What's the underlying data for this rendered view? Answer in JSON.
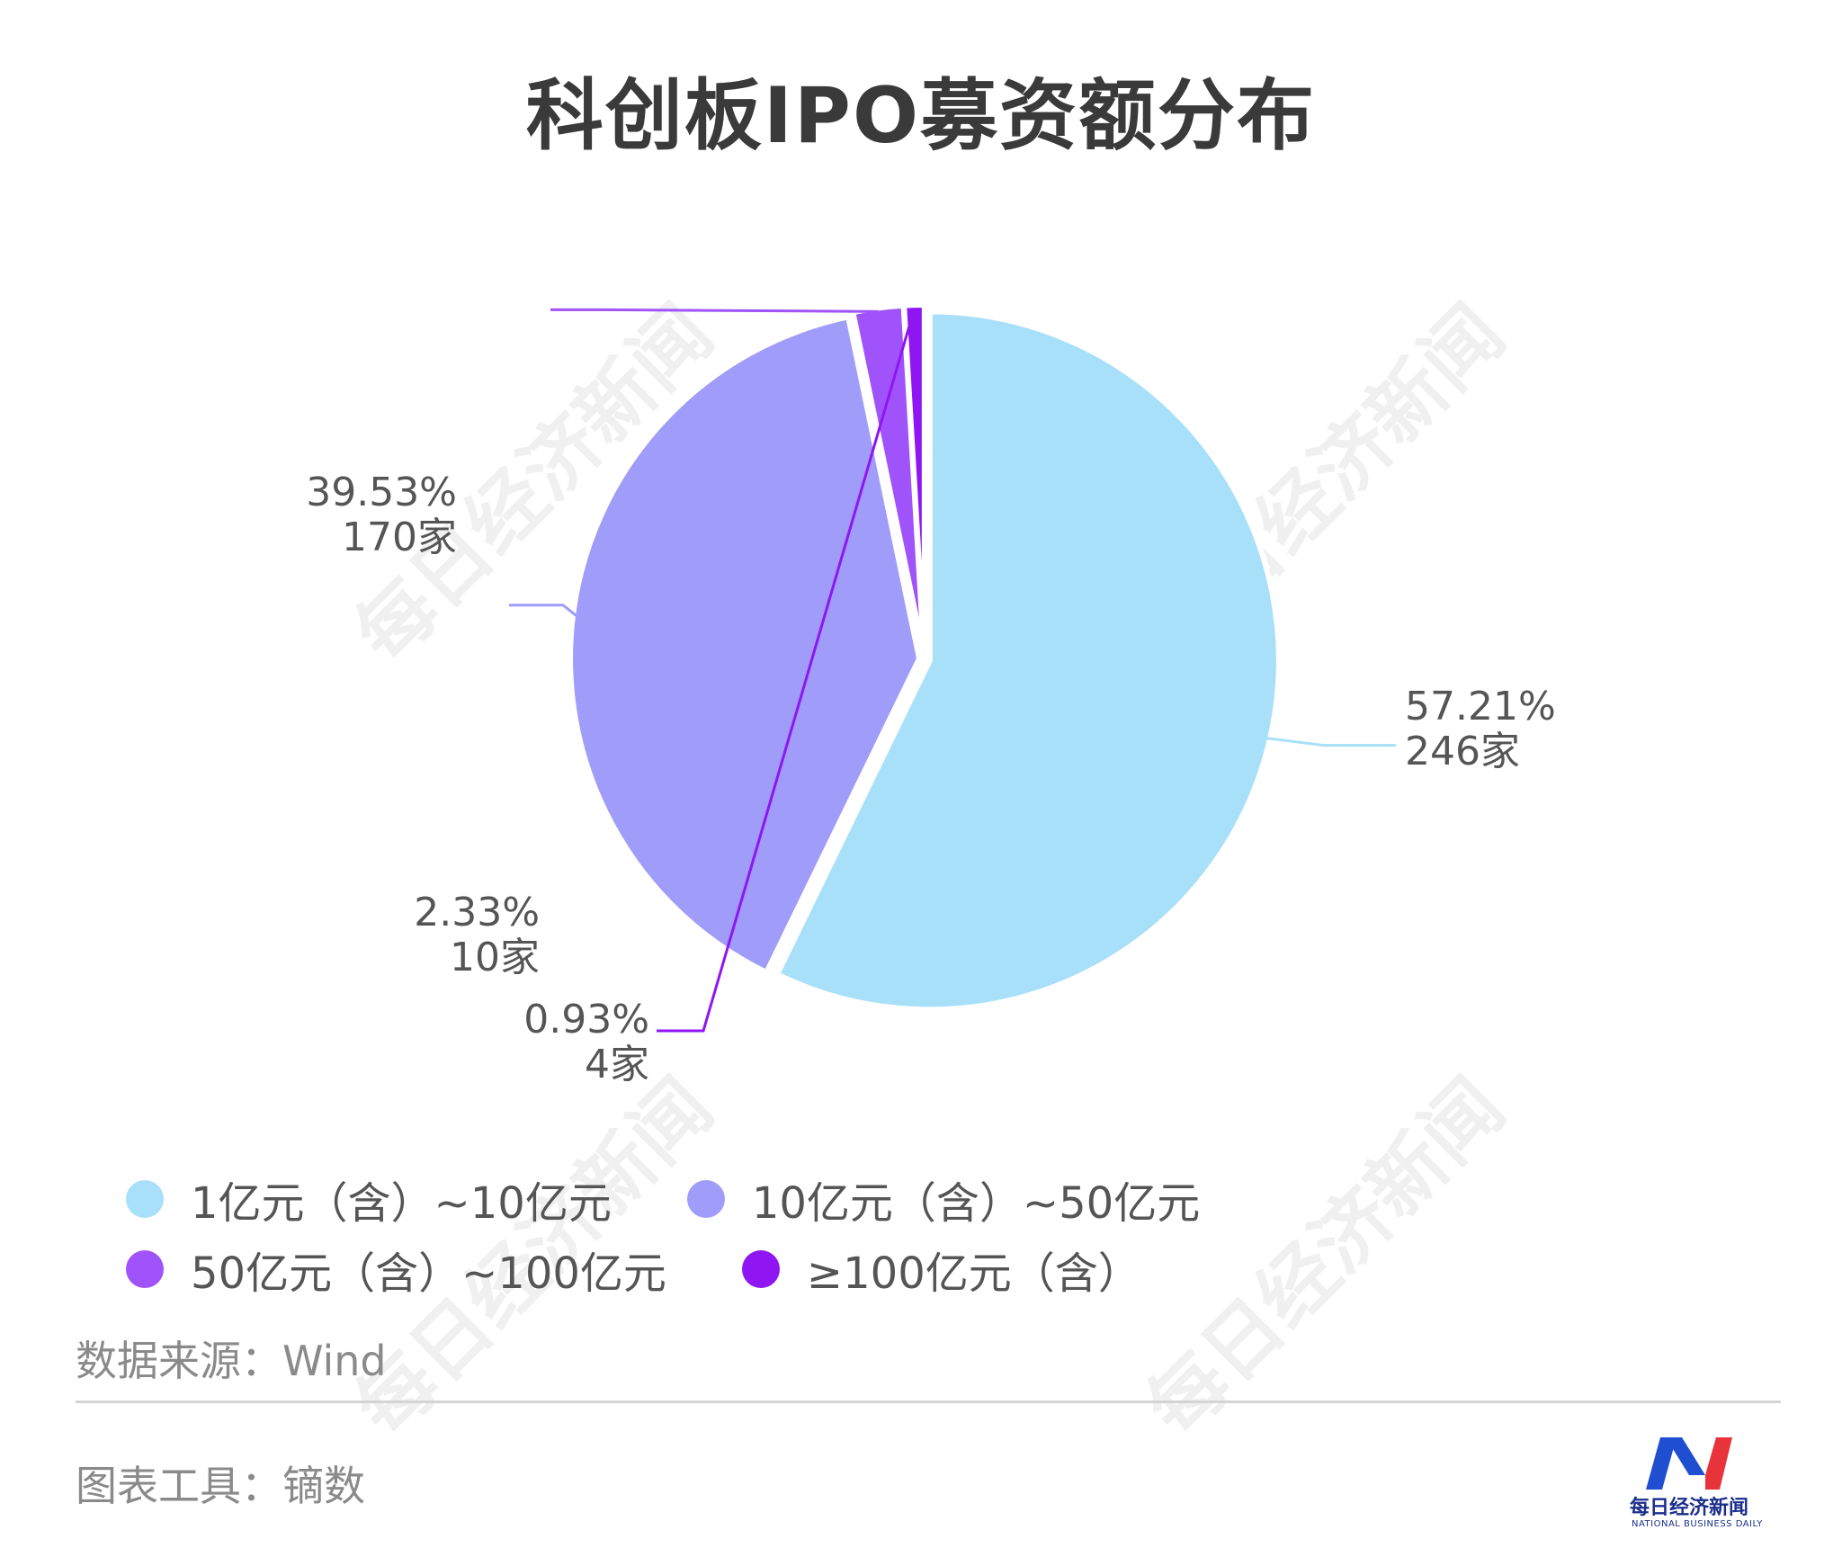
{
  "title": "科创板IPO募资额分布",
  "chart_data": {
    "type": "pie",
    "title": "科创板IPO募资额分布",
    "slices": [
      {
        "category": "1亿元（含）~10亿元",
        "percent": 57.21,
        "percent_label": "57.21%",
        "count": 246,
        "count_label": "246家",
        "color": "#a8e0fa"
      },
      {
        "category": "10亿元（含）~50亿元",
        "percent": 39.53,
        "percent_label": "39.53%",
        "count": 170,
        "count_label": "170家",
        "color": "#a09cf9"
      },
      {
        "category": "50亿元（含）~100亿元",
        "percent": 2.33,
        "percent_label": "2.33%",
        "count": 10,
        "count_label": "10家",
        "color": "#a052fb"
      },
      {
        "category": "≥100亿元（含）",
        "percent": 0.93,
        "percent_label": "0.93%",
        "count": 4,
        "count_label": "4家",
        "color": "#8f16f2"
      }
    ],
    "legend_position": "bottom"
  },
  "footer": {
    "source": "数据来源：Wind",
    "tool": "图表工具：镝数"
  },
  "watermark": "每日经济新闻",
  "logo": {
    "name_cn": "每日经济新闻",
    "name_en": "NATIONAL BUSINESS DAILY"
  }
}
